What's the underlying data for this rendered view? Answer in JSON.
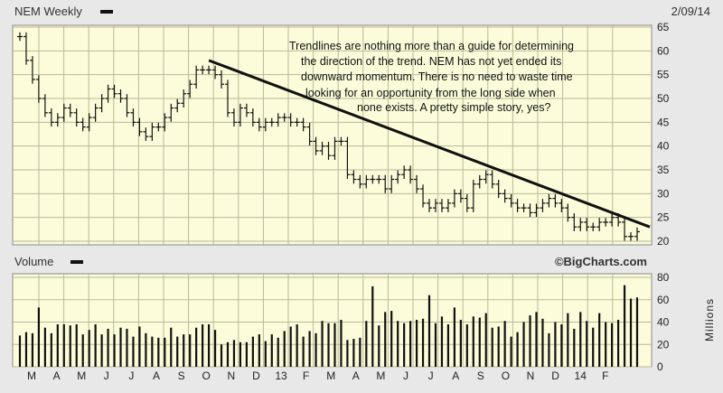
{
  "header": {
    "symbol_label": "NEM Weekly",
    "date_label": "2/09/14",
    "volume_label": "Volume",
    "watermark": "©BigCharts.com",
    "volume_unit": "Millions"
  },
  "colors": {
    "panel_bg": "#fcfcda",
    "frame_bg": "#e8e8e8",
    "line": "#111111"
  },
  "annotation": {
    "lines": [
      "Trendlines are nothing more than a guide for determining",
      "the direction of the trend.  NEM has not yet ended its",
      "downward momentum.  There is no need to waste time",
      "looking for an opportunity from the long side when",
      "none exists.  A pretty simple story, yes?"
    ]
  },
  "chart_data": [
    {
      "type": "ohlc",
      "price_ticks": [
        20,
        25,
        30,
        35,
        40,
        45,
        50,
        55,
        60,
        65
      ],
      "ylim": [
        20,
        65
      ],
      "x_labels": [
        "M",
        "A",
        "M",
        "J",
        "J",
        "A",
        "S",
        "O",
        "N",
        "D",
        "13",
        "F",
        "M",
        "A",
        "M",
        "J",
        "J",
        "A",
        "S",
        "O",
        "N",
        "D",
        "14",
        "F"
      ],
      "weeks": 99,
      "closes": [
        63,
        58,
        54,
        50,
        47,
        45,
        46,
        48,
        47,
        45,
        44,
        46,
        48,
        50,
        52,
        51,
        50,
        47,
        45,
        43,
        42,
        44,
        44,
        46,
        48,
        49,
        51,
        53,
        56,
        56,
        56,
        55,
        53,
        47,
        45,
        48,
        47,
        45,
        44,
        45,
        45,
        46,
        46,
        45,
        45,
        44,
        41,
        39,
        40,
        38,
        41,
        41,
        34,
        33,
        32,
        33,
        33,
        33,
        31,
        33,
        34,
        35,
        33,
        31,
        28,
        27,
        28,
        27,
        28,
        30,
        29,
        27,
        32,
        33,
        34,
        32,
        30,
        29,
        28,
        27,
        27,
        26,
        27,
        28,
        29,
        28,
        27,
        25,
        23,
        24,
        23,
        23,
        24,
        24,
        25,
        24,
        21,
        21,
        22
      ],
      "trendline": {
        "start_week": 30,
        "start_price": 58,
        "end_week": 98,
        "end_price": 23
      }
    },
    {
      "type": "bar",
      "title": "Volume",
      "ylabel": "Millions",
      "ticks": [
        0,
        20,
        40,
        60,
        80
      ],
      "ylim": [
        0,
        80
      ],
      "values": [
        28,
        31,
        30,
        53,
        35,
        30,
        38,
        38,
        37,
        38,
        29,
        33,
        38,
        29,
        34,
        29,
        35,
        34,
        27,
        36,
        30,
        27,
        26,
        26,
        35,
        27,
        29,
        29,
        35,
        38,
        38,
        33,
        20,
        22,
        24,
        22,
        22,
        27,
        29,
        23,
        29,
        26,
        32,
        36,
        38,
        27,
        32,
        30,
        41,
        39,
        39,
        42,
        24,
        25,
        26,
        41,
        72,
        37,
        49,
        50,
        41,
        39,
        41,
        42,
        43,
        64,
        39,
        45,
        38,
        53,
        42,
        38,
        45,
        44,
        48,
        35,
        36,
        41,
        27,
        31,
        40,
        46,
        49,
        43,
        30,
        40,
        38,
        48,
        34,
        49,
        41,
        35,
        48,
        40,
        39,
        42,
        73,
        61,
        62
      ]
    }
  ]
}
